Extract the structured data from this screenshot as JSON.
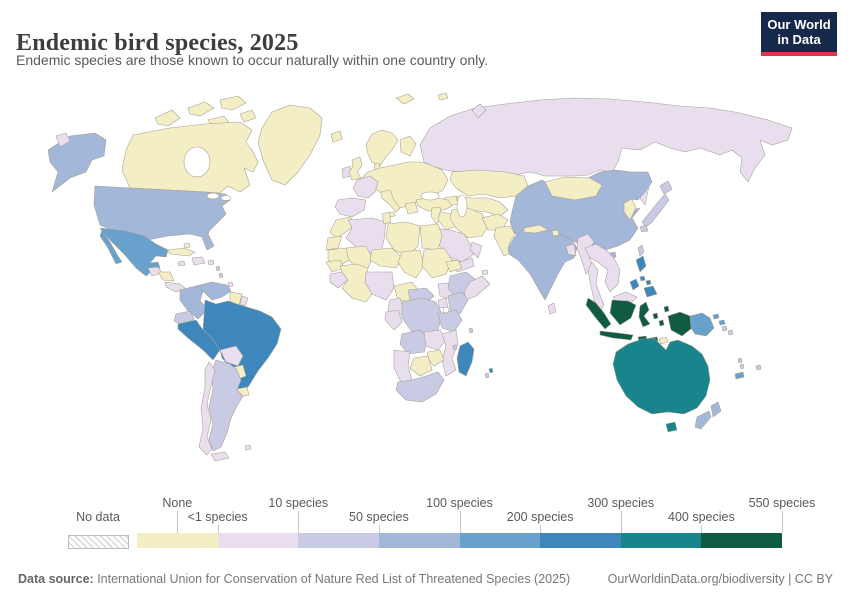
{
  "header": {
    "title": "Endemic bird species, 2025",
    "subtitle": "Endemic species are those known to occur naturally within one country only.",
    "logo_line1": "Our World",
    "logo_line2": "in Data"
  },
  "theme": {
    "logo_bg": "#16294b",
    "logo_accent": "#dc354c",
    "border_color": "#a59e92"
  },
  "legend": {
    "no_data_label": "No data",
    "ticks": [
      {
        "label": "None",
        "pos": 0.5,
        "row": "top"
      },
      {
        "label": "<1 species",
        "pos": 1,
        "row": "bottom"
      },
      {
        "label": "10 species",
        "pos": 2,
        "row": "top"
      },
      {
        "label": "50 species",
        "pos": 3,
        "row": "bottom"
      },
      {
        "label": "100 species",
        "pos": 4,
        "row": "top"
      },
      {
        "label": "200 species",
        "pos": 5,
        "row": "bottom"
      },
      {
        "label": "300 species",
        "pos": 6,
        "row": "top"
      },
      {
        "label": "400 species",
        "pos": 7,
        "row": "bottom"
      },
      {
        "label": "550 species",
        "pos": 8,
        "row": "top"
      }
    ]
  },
  "footer": {
    "source_label": "Data source:",
    "source_text": " International Union for Conservation of Nature Red List of Threatened Species (2025)",
    "link_text": "OurWorldinData.org/biodiversity | CC BY"
  },
  "chart_data": {
    "type": "choropleth-map",
    "title": "Endemic bird species, 2025",
    "unit": "species",
    "bins": [
      "None",
      "<1",
      "1-10",
      "10-50",
      "50-100",
      "100-200",
      "200-300",
      "300-400",
      "400-550"
    ],
    "legend_boundaries": [
      "None",
      "<1 species",
      "10 species",
      "50 species",
      "100 species",
      "200 species",
      "300 species",
      "400 species",
      "550 species"
    ]
  },
  "map": {
    "palette": [
      "#f4eec5",
      "#e9deee",
      "#c9cae3",
      "#a3b8d8",
      "#68a1cb",
      "#3d87bd",
      "#17858b",
      "#0f5c42"
    ],
    "countries": {
      "canada": 0,
      "greenland": 0,
      "arctic-islands": 0,
      "svalbard": 0,
      "united-states": 3,
      "chukotka": 1,
      "mexico": 4,
      "guatemala": 1,
      "nicaragua": 0,
      "panama": 1,
      "cuba": 0,
      "bahamas": 0,
      "jamaica": 1,
      "hispaniola": 1,
      "puerto-rico": 1,
      "lesser-antilles": 2,
      "trinidad": 1,
      "colombia": 3,
      "venezuela": 3,
      "guyanas": 0,
      "french-guiana": 1,
      "ecuador": 2,
      "peru": 5,
      "brazil": 5,
      "bolivia": 1,
      "paraguay": 0,
      "uruguay": 0,
      "argentina": 2,
      "chile": 1,
      "tierra-del-fuego": 1,
      "falklands": 1,
      "iceland": 0,
      "ireland": 1,
      "united-kingdom": 0,
      "scandinavia": 0,
      "finland": 0,
      "denmark": 0,
      "europe-mainland": 0,
      "italy": 0,
      "greece": 0,
      "france": 1,
      "iberia": 1,
      "russia": 1,
      "sakhalin": 1,
      "novaya-zemlya": 1,
      "kazakhstan": 0,
      "central-asia": 0,
      "caucasus": 0,
      "turkey": 0,
      "levant": 0,
      "iraq": 0,
      "iran": 0,
      "saudi-arabia": 1,
      "yemen": 1,
      "oman": 1,
      "afghanistan": 0,
      "pakistan": 0,
      "india": 3,
      "nepal": 0,
      "bhutan": 0,
      "bangladesh": 1,
      "sri-lanka": 1,
      "myanmar": 1,
      "china": 3,
      "mongolia": 0,
      "korea": 0,
      "japan": 2,
      "taiwan": 2,
      "hainan": 3,
      "indochina": 1,
      "malay-peninsula": 1,
      "malaysia-borneo": 1,
      "indonesia": 7,
      "timor": 0,
      "philippines": 5,
      "papua-new-guinea": 4,
      "solomons": 2,
      "australia": 6,
      "new-zealand": 3,
      "fiji": 2,
      "vanuatu": 2,
      "new-caledonia": 4,
      "morocco": 0,
      "western-sahara": 0,
      "algeria": 1,
      "tunisia": 0,
      "libya": 0,
      "egypt": 0,
      "mauritania": 0,
      "mali": 0,
      "burkina-benin": 1,
      "niger": 0,
      "chad": 0,
      "sudan": 0,
      "south-sudan": 1,
      "eritrea": 0,
      "ethiopia": 2,
      "somalia": 1,
      "senegal": 0,
      "guinea": 1,
      "west-africa-coast": 0,
      "nigeria": 0,
      "cameroon": 1,
      "central-african-republic": 2,
      "gabon-congo": 1,
      "drc": 2,
      "uganda": 1,
      "kenya": 2,
      "tanzania": 2,
      "angola": 2,
      "zambia": 1,
      "mozambique": 1,
      "zimbabwe": 0,
      "botswana": 0,
      "namibia": 1,
      "south-africa": 2,
      "madagascar": 5,
      "comoros": 2,
      "seychelles": 2,
      "mauritius": 5,
      "reunion": 2
    }
  }
}
